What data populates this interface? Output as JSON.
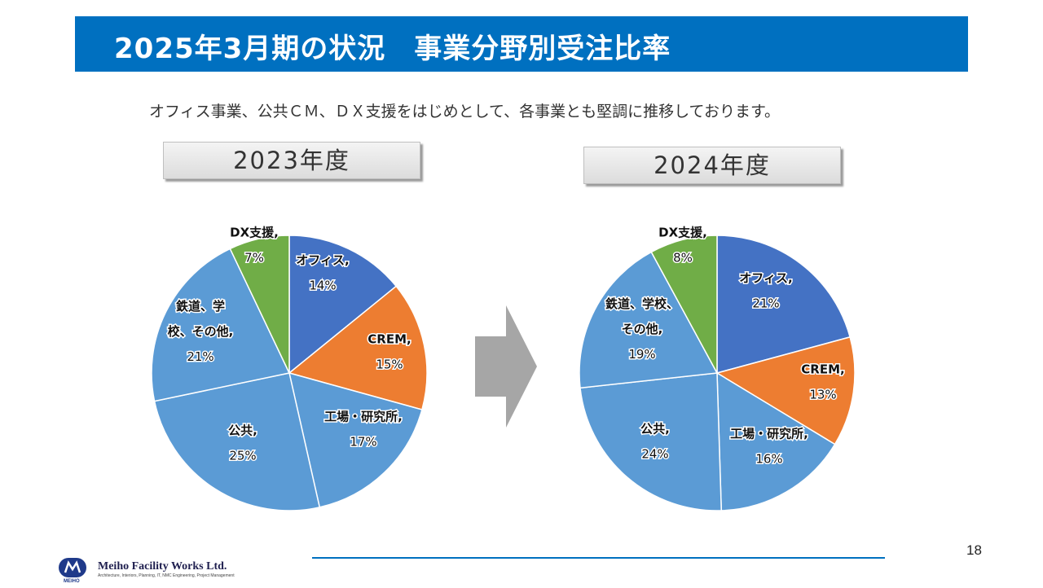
{
  "header": {
    "title": "2025年3月期の状況　事業分野別受注比率",
    "subtitle": "オフィス事業、公共ＣＭ、ＤＸ支援をはじめとして、各事業とも堅調に推移しております。"
  },
  "years": {
    "left": "2023年度",
    "right": "2024年度"
  },
  "colors": {
    "title_bar": "#0070c0",
    "office": "#4472c4",
    "crem": "#ed7d31",
    "blue_segment": "#5b9bd5",
    "dx": "#70ad47",
    "arrow": "#a6a6a6"
  },
  "chart_data": [
    {
      "type": "pie",
      "title": "2023年度",
      "slices": [
        {
          "label": "オフィス",
          "value": 14,
          "value_label": "14%",
          "color": "#4472c4"
        },
        {
          "label": "CREM",
          "value": 15,
          "value_label": "15%",
          "color": "#ed7d31"
        },
        {
          "label": "工場・研究所",
          "value": 17,
          "value_label": "17%",
          "color": "#5b9bd5"
        },
        {
          "label": "公共",
          "value": 25,
          "value_label": "25%",
          "color": "#5b9bd5"
        },
        {
          "label": "鉄道、学校、その他",
          "value": 21,
          "value_label": "21%",
          "color": "#5b9bd5"
        },
        {
          "label": "DX支援",
          "value": 7,
          "value_label": "7%",
          "color": "#70ad47"
        }
      ],
      "label_lines": [
        [
          "オフィス,",
          "14%"
        ],
        [
          "CREM,",
          "15%"
        ],
        [
          "工場・研究所,",
          "17%"
        ],
        [
          "公共,",
          "25%"
        ],
        [
          "鉄道、学",
          "校、その他,",
          "21%"
        ],
        [
          "DX支援,",
          "7%"
        ]
      ]
    },
    {
      "type": "pie",
      "title": "2024年度",
      "slices": [
        {
          "label": "オフィス",
          "value": 21,
          "value_label": "21%",
          "color": "#4472c4"
        },
        {
          "label": "CREM",
          "value": 13,
          "value_label": "13%",
          "color": "#ed7d31"
        },
        {
          "label": "工場・研究所",
          "value": 16,
          "value_label": "16%",
          "color": "#5b9bd5"
        },
        {
          "label": "公共",
          "value": 24,
          "value_label": "24%",
          "color": "#5b9bd5"
        },
        {
          "label": "鉄道、学校、その他",
          "value": 19,
          "value_label": "19%",
          "color": "#5b9bd5"
        },
        {
          "label": "DX支援",
          "value": 8,
          "value_label": "8%",
          "color": "#70ad47"
        }
      ],
      "label_lines": [
        [
          "オフィス,",
          "21%"
        ],
        [
          "CREM,",
          "13%"
        ],
        [
          "工場・研究所,",
          "16%"
        ],
        [
          "公共,",
          "24%"
        ],
        [
          "鉄道、学校、",
          "その他,",
          "19%"
        ],
        [
          "DX支援,",
          "8%"
        ]
      ]
    }
  ],
  "footer": {
    "page_number": "18",
    "company": "Meiho Facility Works Ltd.",
    "tagline": "Architecture, Interiors, Planning, IT, NMC Engineering, Project Management",
    "logo_text": "MEIHO"
  }
}
